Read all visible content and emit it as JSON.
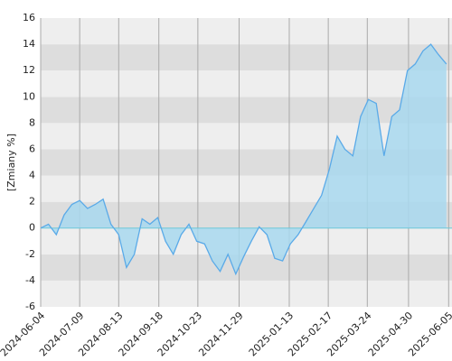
{
  "chart_data": {
    "type": "area",
    "y_label": "[Zmiany %]",
    "x": [
      "2024-06-04",
      "2024-06-11",
      "2024-06-18",
      "2024-06-25",
      "2024-07-02",
      "2024-07-09",
      "2024-07-16",
      "2024-07-23",
      "2024-07-30",
      "2024-08-06",
      "2024-08-13",
      "2024-08-20",
      "2024-08-27",
      "2024-09-03",
      "2024-09-10",
      "2024-09-17",
      "2024-09-24",
      "2024-10-01",
      "2024-10-08",
      "2024-10-15",
      "2024-10-22",
      "2024-10-29",
      "2024-11-05",
      "2024-11-12",
      "2024-11-19",
      "2024-11-26",
      "2024-12-03",
      "2024-12-10",
      "2024-12-17",
      "2024-12-24",
      "2024-12-31",
      "2025-01-07",
      "2025-01-14",
      "2025-01-21",
      "2025-01-28",
      "2025-02-04",
      "2025-02-11",
      "2025-02-18",
      "2025-02-25",
      "2025-03-04",
      "2025-03-11",
      "2025-03-18",
      "2025-03-25",
      "2025-04-01",
      "2025-04-08",
      "2025-04-15",
      "2025-04-22",
      "2025-04-29",
      "2025-05-06",
      "2025-05-13",
      "2025-05-20",
      "2025-05-27",
      "2025-06-03"
    ],
    "values": [
      0,
      0.3,
      -0.5,
      1.0,
      1.8,
      2.1,
      1.5,
      1.8,
      2.2,
      0.3,
      -0.5,
      -3.0,
      -2.0,
      0.7,
      0.3,
      0.8,
      -1.0,
      -2.0,
      -0.5,
      0.3,
      -1.0,
      -1.2,
      -2.5,
      -3.3,
      -2.0,
      -3.5,
      -2.2,
      -1.0,
      0.1,
      -0.5,
      -2.3,
      -2.5,
      -1.2,
      -0.5,
      0.5,
      1.5,
      2.5,
      4.5,
      7.0,
      6.0,
      5.5,
      8.5,
      9.8,
      9.5,
      5.5,
      8.5,
      9.0,
      12.0,
      12.5,
      13.5,
      14.0,
      13.2,
      12.5
    ],
    "color": "#5aaae8",
    "fill": "#a8d8ee",
    "xlim": [
      "2024-06-04",
      "2025-06-08"
    ],
    "xticks": [
      "2024-06-04",
      "2024-07-09",
      "2024-08-13",
      "2024-09-18",
      "2024-10-23",
      "2024-11-29",
      "2025-01-13",
      "2025-02-17",
      "2025-03-24",
      "2025-04-30",
      "2025-06-05"
    ],
    "ylim": [
      -6,
      16
    ],
    "yticks": [
      -6,
      -4,
      -2,
      0,
      2,
      4,
      6,
      8,
      10,
      12,
      14,
      16
    ],
    "grid": true
  }
}
